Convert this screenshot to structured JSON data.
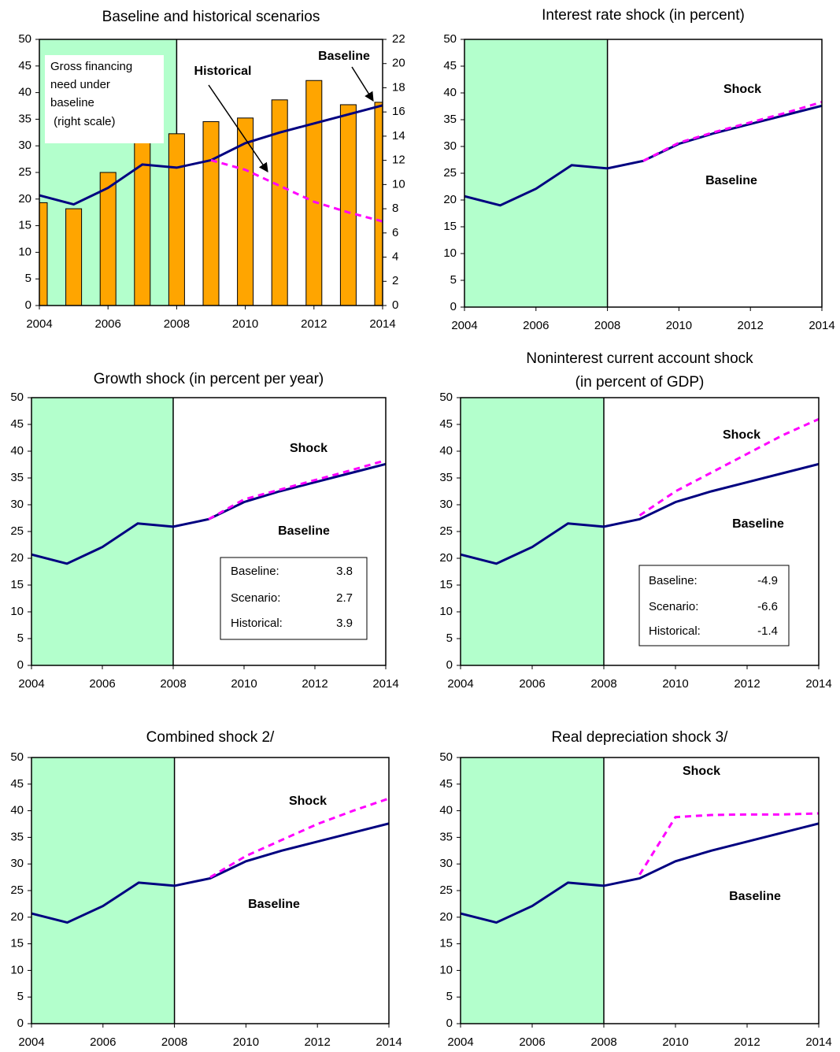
{
  "chart_data": [
    {
      "type": "combo",
      "title": "Baseline and historical scenarios",
      "x": [
        2004,
        2005,
        2006,
        2007,
        2008,
        2009,
        2010,
        2011,
        2012,
        2013,
        2014
      ],
      "xlim": [
        2004,
        2014
      ],
      "xticks": [
        2004,
        2006,
        2008,
        2010,
        2012,
        2014
      ],
      "ylim": [
        0,
        50
      ],
      "yticks": [
        0,
        5,
        10,
        15,
        20,
        25,
        30,
        35,
        40,
        45,
        50
      ],
      "y2lim": [
        0,
        22
      ],
      "y2ticks": [
        0,
        2,
        4,
        6,
        8,
        10,
        12,
        14,
        16,
        18,
        20,
        22
      ],
      "shaded_xlim": [
        2004,
        2008
      ],
      "shade_color": "#b3ffcc",
      "annotation_box": [
        "Gross financing",
        "need under",
        "baseline",
        " (right scale)"
      ],
      "series": [
        {
          "name": "Baseline",
          "type": "line",
          "color": "#000080",
          "values": [
            20.7,
            19.0,
            22.1,
            26.5,
            25.9,
            27.3,
            30.5,
            32.5,
            34.2,
            35.9,
            37.6
          ]
        },
        {
          "name": "Historical",
          "type": "line",
          "dashed": true,
          "color": "#ff00ff",
          "values": [
            null,
            null,
            null,
            null,
            null,
            27.3,
            25.5,
            22.5,
            19.5,
            17.5,
            15.8
          ]
        },
        {
          "type": "bar",
          "axis": "y2",
          "color": "#ffa500",
          "values": [
            8.5,
            8.0,
            11.0,
            13.8,
            14.2,
            15.2,
            15.5,
            17.0,
            18.6,
            16.6,
            16.8
          ]
        }
      ]
    },
    {
      "type": "line",
      "title": "Interest rate shock (in percent)",
      "x": [
        2004,
        2005,
        2006,
        2007,
        2008,
        2009,
        2010,
        2011,
        2012,
        2013,
        2014
      ],
      "xlim": [
        2004,
        2014
      ],
      "xticks": [
        2004,
        2006,
        2008,
        2010,
        2012,
        2014
      ],
      "ylim": [
        0,
        50
      ],
      "yticks": [
        0,
        5,
        10,
        15,
        20,
        25,
        30,
        35,
        40,
        45,
        50
      ],
      "shaded_xlim": [
        2004,
        2008
      ],
      "shade_color": "#b3ffcc",
      "series": [
        {
          "name": "Baseline",
          "color": "#000080",
          "values": [
            20.7,
            19.0,
            22.1,
            26.5,
            25.9,
            27.3,
            30.5,
            32.5,
            34.2,
            35.9,
            37.6
          ]
        },
        {
          "name": "Shock",
          "dashed": true,
          "color": "#ff00ff",
          "values": [
            null,
            null,
            null,
            null,
            null,
            27.3,
            30.7,
            32.7,
            34.5,
            36.3,
            38.3
          ]
        }
      ]
    },
    {
      "type": "line",
      "title": "Growth shock (in percent per year)",
      "x": [
        2004,
        2005,
        2006,
        2007,
        2008,
        2009,
        2010,
        2011,
        2012,
        2013,
        2014
      ],
      "xlim": [
        2004,
        2014
      ],
      "xticks": [
        2004,
        2006,
        2008,
        2010,
        2012,
        2014
      ],
      "ylim": [
        0,
        50
      ],
      "yticks": [
        0,
        5,
        10,
        15,
        20,
        25,
        30,
        35,
        40,
        45,
        50
      ],
      "shaded_xlim": [
        2004,
        2008
      ],
      "shade_color": "#b3ffcc",
      "series": [
        {
          "name": "Baseline",
          "color": "#000080",
          "values": [
            20.7,
            19.0,
            22.1,
            26.5,
            25.9,
            27.3,
            30.5,
            32.5,
            34.2,
            35.9,
            37.6
          ]
        },
        {
          "name": "Shock",
          "dashed": true,
          "color": "#ff00ff",
          "values": [
            null,
            null,
            null,
            null,
            null,
            27.3,
            31.0,
            32.8,
            34.6,
            36.4,
            38.3
          ]
        }
      ],
      "table": {
        "labels": [
          "Baseline:",
          "Scenario:",
          "Historical:"
        ],
        "values": [
          3.8,
          2.7,
          3.9
        ]
      }
    },
    {
      "type": "line",
      "title": [
        "Noninterest current account shock",
        "(in percent of GDP)"
      ],
      "x": [
        2004,
        2005,
        2006,
        2007,
        2008,
        2009,
        2010,
        2011,
        2012,
        2013,
        2014
      ],
      "xlim": [
        2004,
        2014
      ],
      "xticks": [
        2004,
        2006,
        2008,
        2010,
        2012,
        2014
      ],
      "ylim": [
        0,
        50
      ],
      "yticks": [
        0,
        5,
        10,
        15,
        20,
        25,
        30,
        35,
        40,
        45,
        50
      ],
      "shaded_xlim": [
        2004,
        2008
      ],
      "shade_color": "#b3ffcc",
      "series": [
        {
          "name": "Baseline",
          "color": "#000080",
          "values": [
            20.7,
            19.0,
            22.1,
            26.5,
            25.9,
            27.3,
            30.5,
            32.5,
            34.2,
            35.9,
            37.6
          ]
        },
        {
          "name": "Shock",
          "dashed": true,
          "color": "#ff00ff",
          "values": [
            null,
            null,
            null,
            null,
            null,
            28.0,
            32.5,
            36.0,
            39.5,
            43.0,
            46.0
          ]
        }
      ],
      "table": {
        "labels": [
          "Baseline:",
          "Scenario:",
          "Historical:"
        ],
        "values": [
          -4.9,
          -6.6,
          -1.4
        ]
      }
    },
    {
      "type": "line",
      "title": "Combined shock  2/",
      "x": [
        2004,
        2005,
        2006,
        2007,
        2008,
        2009,
        2010,
        2011,
        2012,
        2013,
        2014
      ],
      "xlim": [
        2004,
        2014
      ],
      "xticks": [
        2004,
        2006,
        2008,
        2010,
        2012,
        2014
      ],
      "ylim": [
        0,
        50
      ],
      "yticks": [
        0,
        5,
        10,
        15,
        20,
        25,
        30,
        35,
        40,
        45,
        50
      ],
      "shaded_xlim": [
        2004,
        2008
      ],
      "shade_color": "#b3ffcc",
      "series": [
        {
          "name": "Baseline",
          "color": "#000080",
          "values": [
            20.7,
            19.0,
            22.1,
            26.5,
            25.9,
            27.3,
            30.5,
            32.5,
            34.2,
            35.9,
            37.6
          ]
        },
        {
          "name": "Shock",
          "dashed": true,
          "color": "#ff00ff",
          "values": [
            null,
            null,
            null,
            null,
            null,
            27.5,
            31.5,
            34.5,
            37.5,
            40.0,
            42.3
          ]
        }
      ]
    },
    {
      "type": "line",
      "title": "Real depreciation shock  3/",
      "x": [
        2004,
        2005,
        2006,
        2007,
        2008,
        2009,
        2010,
        2011,
        2012,
        2013,
        2014
      ],
      "xlim": [
        2004,
        2014
      ],
      "xticks": [
        2004,
        2006,
        2008,
        2010,
        2012,
        2014
      ],
      "ylim": [
        0,
        50
      ],
      "yticks": [
        0,
        5,
        10,
        15,
        20,
        25,
        30,
        35,
        40,
        45,
        50
      ],
      "shaded_xlim": [
        2004,
        2008
      ],
      "shade_color": "#b3ffcc",
      "series": [
        {
          "name": "Baseline",
          "color": "#000080",
          "values": [
            20.7,
            19.0,
            22.1,
            26.5,
            25.9,
            27.3,
            30.5,
            32.5,
            34.2,
            35.9,
            37.6
          ]
        },
        {
          "name": "Shock",
          "dashed": true,
          "color": "#ff00ff",
          "values": [
            null,
            null,
            null,
            null,
            null,
            28.0,
            38.8,
            39.2,
            39.3,
            39.3,
            39.5
          ]
        }
      ]
    }
  ]
}
